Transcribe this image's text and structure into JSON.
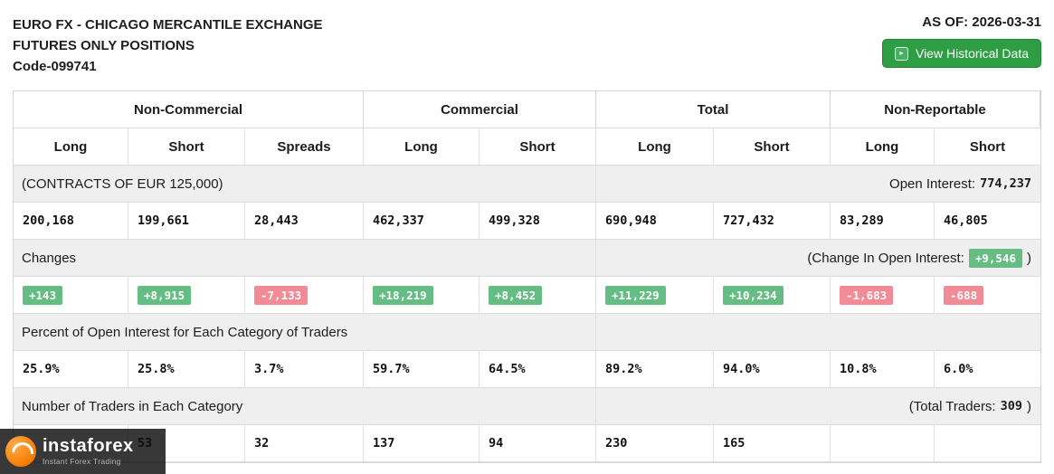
{
  "header": {
    "title_line1": "EURO FX - CHICAGO MERCANTILE EXCHANGE",
    "title_line2": "FUTURES ONLY POSITIONS",
    "code": "Code-099741",
    "as_of": "AS OF: 2026-03-31",
    "historical_button": "View Historical Data"
  },
  "table": {
    "groups": {
      "non_commercial": "Non-Commercial",
      "commercial": "Commercial",
      "total": "Total",
      "non_reportable": "Non-Reportable"
    },
    "columns": [
      "Long",
      "Short",
      "Spreads",
      "Long",
      "Short",
      "Long",
      "Short",
      "Long",
      "Short"
    ],
    "contracts_label": "(CONTRACTS OF EUR 125,000)",
    "open_interest_label": "Open Interest:",
    "open_interest_value": "774,237",
    "positions": [
      "200,168",
      "199,661",
      "28,443",
      "462,337",
      "499,328",
      "690,948",
      "727,432",
      "83,289",
      "46,805"
    ],
    "changes_label": "Changes",
    "change_oi_label": "(Change In Open Interest:",
    "change_oi_suffix": ")",
    "change_oi_value": "+9,546",
    "changes": [
      {
        "value": "+143",
        "dir": "pos"
      },
      {
        "value": "+8,915",
        "dir": "pos"
      },
      {
        "value": "-7,133",
        "dir": "neg"
      },
      {
        "value": "+18,219",
        "dir": "pos"
      },
      {
        "value": "+8,452",
        "dir": "pos"
      },
      {
        "value": "+11,229",
        "dir": "pos"
      },
      {
        "value": "+10,234",
        "dir": "pos"
      },
      {
        "value": "-1,683",
        "dir": "neg"
      },
      {
        "value": "-688",
        "dir": "neg"
      }
    ],
    "percent_label": "Percent of Open Interest for Each Category of Traders",
    "percents": [
      "25.9%",
      "25.8%",
      "3.7%",
      "59.7%",
      "64.5%",
      "89.2%",
      "94.0%",
      "10.8%",
      "6.0%"
    ],
    "traders_label": "Number of Traders in Each Category",
    "total_traders_label": "(Total Traders:",
    "total_traders_value": "309",
    "total_traders_suffix": ")",
    "traders": [
      "",
      "53",
      "32",
      "137",
      "94",
      "230",
      "165",
      "",
      ""
    ]
  },
  "watermark": {
    "brand": "instaforex",
    "tagline": "Instant Forex Trading"
  },
  "colors": {
    "positive_badge": "#65bd83",
    "negative_badge": "#f28b95",
    "button_green": "#2e9e44",
    "band_gray": "#efefef"
  }
}
